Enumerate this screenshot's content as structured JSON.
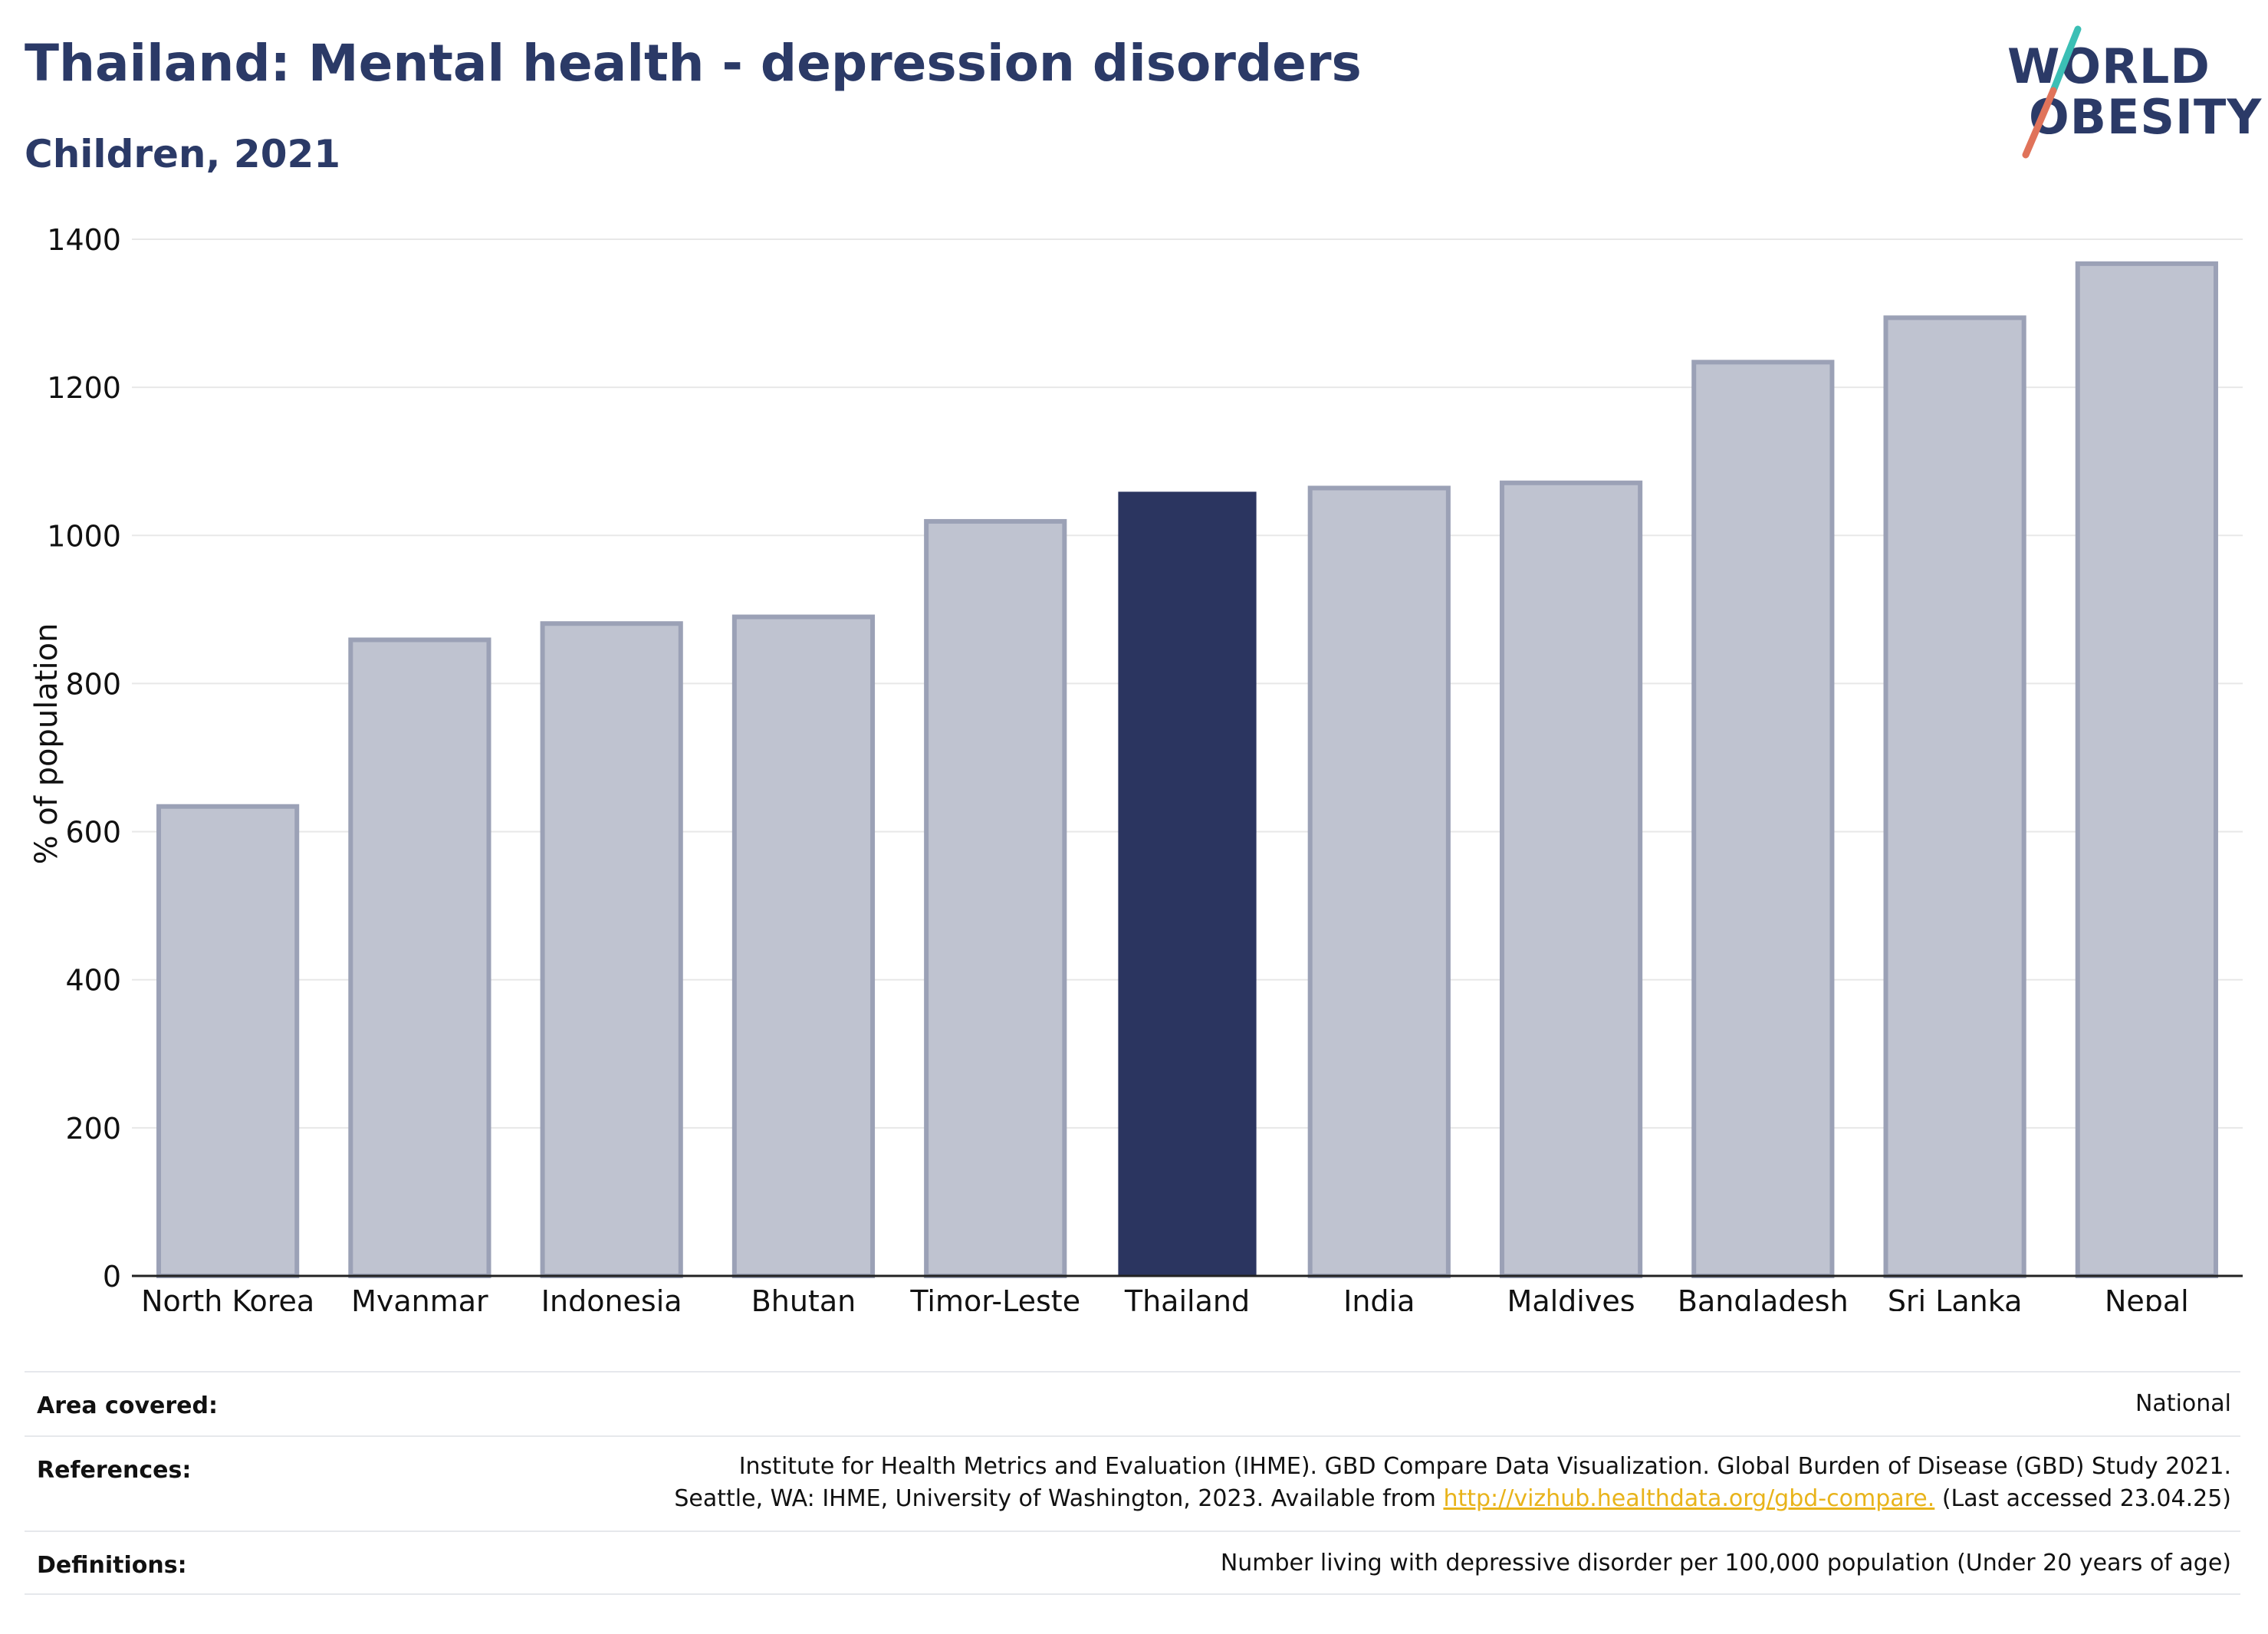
{
  "header": {
    "title": "Thailand: Mental health - depression disorders",
    "subtitle": "Children, 2021"
  },
  "logo": {
    "line1": "WORLD",
    "line2": "OBESITY",
    "colors": {
      "text": "#2b3a67",
      "slash_top": "#3bbfb5",
      "slash_bottom": "#e0735a"
    }
  },
  "chart_data": {
    "type": "bar",
    "categories": [
      "North Korea",
      "Myanmar",
      "Indonesia",
      "Bhutan",
      "Timor-Leste",
      "Thailand",
      "India",
      "Maldives",
      "Bangladesh",
      "Sri Lanka",
      "Nepal"
    ],
    "values": [
      634,
      859,
      881,
      890,
      1019,
      1059,
      1064,
      1071,
      1234,
      1294,
      1367
    ],
    "highlight": "Thailand",
    "title": "Thailand: Mental health - depression disorders",
    "subtitle": "Children, 2021",
    "xlabel": "",
    "ylabel": "% of population",
    "ylim": [
      0,
      1400
    ],
    "yticks": [
      0,
      200,
      400,
      600,
      800,
      1000,
      1200,
      1400
    ],
    "grid": true,
    "colors": {
      "bar": "#bfc3d0",
      "bar_border": "#9ba1b6",
      "highlight": "#2b3560",
      "grid": "#e8e8e8",
      "axis": "#222222"
    }
  },
  "footer": {
    "area_label": "Area covered:",
    "area_value": "National",
    "references_label": "References:",
    "references_line1": "Institute for Health Metrics and Evaluation (IHME). GBD Compare Data Visualization. Global Burden of Disease (GBD) Study 2021.",
    "references_line2_pre": "Seattle, WA: IHME, University of Washington, 2023. Available from ",
    "references_link": "http://vizhub.healthdata.org/gbd-compare.",
    "references_line2_post": " (Last accessed 23.04.25)",
    "definitions_label": "Definitions:",
    "definitions_value": "Number living with depressive disorder per 100,000 population (Under 20 years of age)"
  }
}
